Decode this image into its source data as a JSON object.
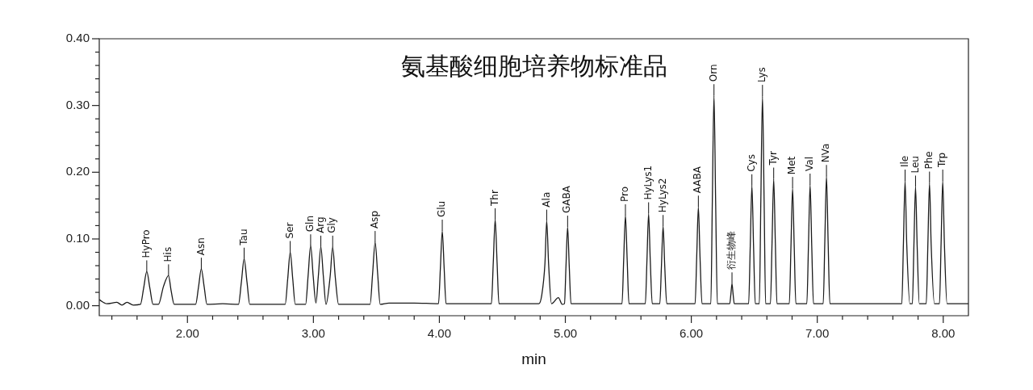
{
  "chart_data": {
    "type": "line",
    "title": "氨基酸细胞培养物标准品",
    "xlabel": "min",
    "marker": "none",
    "line_style": "solid",
    "xlim": [
      1.3,
      8.2
    ],
    "ylim": [
      -0.015,
      0.4
    ],
    "xticks": [
      {
        "value": 1.4,
        "label": null
      },
      {
        "value": 1.6,
        "label": null
      },
      {
        "value": 1.8,
        "label": null
      },
      {
        "value": 2,
        "label": "2.00"
      },
      {
        "value": 2.2,
        "label": null
      },
      {
        "value": 2.4,
        "label": null
      },
      {
        "value": 2.6,
        "label": null
      },
      {
        "value": 2.8,
        "label": null
      },
      {
        "value": 3,
        "label": "3.00"
      },
      {
        "value": 3.2,
        "label": null
      },
      {
        "value": 3.4,
        "label": null
      },
      {
        "value": 3.6,
        "label": null
      },
      {
        "value": 3.8,
        "label": null
      },
      {
        "value": 4,
        "label": "4.00"
      },
      {
        "value": 4.2,
        "label": null
      },
      {
        "value": 4.4,
        "label": null
      },
      {
        "value": 4.6,
        "label": null
      },
      {
        "value": 4.8,
        "label": null
      },
      {
        "value": 5,
        "label": "5.00"
      },
      {
        "value": 5.2,
        "label": null
      },
      {
        "value": 5.4,
        "label": null
      },
      {
        "value": 5.6,
        "label": null
      },
      {
        "value": 5.8,
        "label": null
      },
      {
        "value": 6,
        "label": "6.00"
      },
      {
        "value": 6.2,
        "label": null
      },
      {
        "value": 6.4,
        "label": null
      },
      {
        "value": 6.6,
        "label": null
      },
      {
        "value": 6.8,
        "label": null
      },
      {
        "value": 7,
        "label": "7.00"
      },
      {
        "value": 7.2,
        "label": null
      },
      {
        "value": 7.4,
        "label": null
      },
      {
        "value": 7.6,
        "label": null
      },
      {
        "value": 7.8,
        "label": null
      },
      {
        "value": 8,
        "label": "8.00"
      }
    ],
    "yticks": [
      {
        "value": 0,
        "label": "0.00"
      },
      {
        "value": 0.02,
        "label": null
      },
      {
        "value": 0.04,
        "label": null
      },
      {
        "value": 0.06,
        "label": null
      },
      {
        "value": 0.08,
        "label": null
      },
      {
        "value": 0.1,
        "label": "0.10"
      },
      {
        "value": 0.12,
        "label": null
      },
      {
        "value": 0.14,
        "label": null
      },
      {
        "value": 0.16,
        "label": null
      },
      {
        "value": 0.18,
        "label": null
      },
      {
        "value": 0.2,
        "label": "0.20"
      },
      {
        "value": 0.22,
        "label": null
      },
      {
        "value": 0.24,
        "label": null
      },
      {
        "value": 0.26,
        "label": null
      },
      {
        "value": 0.28,
        "label": null
      },
      {
        "value": 0.3,
        "label": "0.30"
      },
      {
        "value": 0.32,
        "label": null
      },
      {
        "value": 0.34,
        "label": null
      },
      {
        "value": 0.36,
        "label": null
      },
      {
        "value": 0.38,
        "label": null
      },
      {
        "value": 0.4,
        "label": "0.40"
      }
    ],
    "series": [
      {
        "color": "#1a1a1a",
        "x": [
          1.3,
          1.36,
          1.44,
          1.48,
          1.52,
          1.57,
          1.627,
          1.652,
          1.677,
          1.702,
          1.727,
          1.77,
          1.81,
          1.85,
          1.87,
          1.895,
          2.065,
          2.088,
          2.11,
          2.133,
          2.155,
          2.28,
          2.405,
          2.428,
          2.45,
          2.473,
          2.495,
          2.776,
          2.796,
          2.816,
          2.836,
          2.856,
          2.938,
          2.958,
          2.978,
          2.998,
          3.02,
          3.039,
          3.059,
          3.079,
          3.1,
          3.133,
          3.153,
          3.173,
          3.2,
          3.45,
          3.47,
          3.49,
          3.51,
          3.53,
          3.6,
          3.8,
          3.993,
          4.008,
          4.023,
          4.038,
          4.053,
          4.413,
          4.428,
          4.443,
          4.458,
          4.473,
          4.79,
          4.813,
          4.838,
          4.852,
          4.867,
          4.89,
          4.945,
          4.975,
          4.993,
          5.005,
          5.018,
          5.031,
          5.045,
          5.45,
          5.463,
          5.477,
          5.491,
          5.505,
          5.635,
          5.648,
          5.661,
          5.674,
          5.69,
          5.75,
          5.763,
          5.776,
          5.789,
          5.805,
          6.03,
          6.043,
          6.056,
          6.069,
          6.085,
          6.155,
          6.167,
          6.18,
          6.193,
          6.207,
          6.305,
          6.314,
          6.323,
          6.332,
          6.341,
          6.455,
          6.468,
          6.481,
          6.494,
          6.508,
          6.54,
          6.552,
          6.565,
          6.578,
          6.59,
          6.628,
          6.641,
          6.654,
          6.667,
          6.68,
          6.778,
          6.791,
          6.804,
          6.817,
          6.83,
          6.917,
          6.93,
          6.943,
          6.956,
          6.97,
          7.047,
          7.06,
          7.073,
          7.086,
          7.1,
          7.671,
          7.684,
          7.697,
          7.71,
          7.735,
          7.755,
          7.767,
          7.78,
          7.793,
          7.81,
          7.865,
          7.878,
          7.891,
          7.904,
          7.93,
          7.97,
          7.983,
          7.996,
          8.009,
          8.03,
          8.2
        ],
        "values": [
          0.009,
          0.003,
          0.005,
          0.001,
          0.005,
          0.001,
          0.002,
          0.026,
          0.051,
          0.026,
          0.002,
          0.002,
          0.029,
          0.045,
          0.023,
          0.002,
          0.002,
          0.028,
          0.055,
          0.028,
          0.002,
          0.003,
          0.002,
          0.035,
          0.07,
          0.035,
          0.002,
          0.002,
          0.04,
          0.08,
          0.04,
          0.002,
          0.002,
          0.045,
          0.09,
          0.045,
          0.004,
          0.044,
          0.088,
          0.044,
          0.002,
          0.044,
          0.088,
          0.044,
          0.002,
          0.002,
          0.048,
          0.095,
          0.048,
          0.002,
          0.004,
          0.004,
          0.003,
          0.056,
          0.112,
          0.056,
          0.003,
          0.003,
          0.065,
          0.129,
          0.065,
          0.003,
          0.003,
          0.016,
          0.063,
          0.127,
          0.063,
          0.003,
          0.012,
          0.002,
          0.003,
          0.059,
          0.118,
          0.059,
          0.003,
          0.003,
          0.068,
          0.135,
          0.068,
          0.003,
          0.003,
          0.069,
          0.138,
          0.069,
          0.003,
          0.003,
          0.06,
          0.119,
          0.06,
          0.003,
          0.003,
          0.074,
          0.148,
          0.074,
          0.003,
          0.003,
          0.158,
          0.315,
          0.158,
          0.003,
          0.003,
          0.017,
          0.033,
          0.017,
          0.003,
          0.003,
          0.09,
          0.18,
          0.09,
          0.003,
          0.003,
          0.157,
          0.314,
          0.157,
          0.003,
          0.003,
          0.095,
          0.19,
          0.095,
          0.003,
          0.003,
          0.088,
          0.176,
          0.088,
          0.003,
          0.003,
          0.09,
          0.181,
          0.09,
          0.003,
          0.003,
          0.097,
          0.194,
          0.097,
          0.003,
          0.003,
          0.094,
          0.187,
          0.094,
          0.003,
          0.003,
          0.089,
          0.178,
          0.089,
          0.003,
          0.003,
          0.092,
          0.184,
          0.092,
          0.003,
          0.003,
          0.094,
          0.187,
          0.094,
          0.003,
          0.003
        ]
      }
    ],
    "annotations": [
      {
        "text": "HyPro",
        "x": 1.677,
        "y": 0.051
      },
      {
        "text": "His",
        "x": 1.85,
        "y": 0.045
      },
      {
        "text": "Asn",
        "x": 2.11,
        "y": 0.055
      },
      {
        "text": "Tau",
        "x": 2.45,
        "y": 0.07
      },
      {
        "text": "Ser",
        "x": 2.816,
        "y": 0.08
      },
      {
        "text": "Gln",
        "x": 2.978,
        "y": 0.09
      },
      {
        "text": "Arg",
        "x": 3.059,
        "y": 0.088
      },
      {
        "text": "Gly",
        "x": 3.153,
        "y": 0.088
      },
      {
        "text": "Asp",
        "x": 3.49,
        "y": 0.095
      },
      {
        "text": "Glu",
        "x": 4.023,
        "y": 0.112
      },
      {
        "text": "Thr",
        "x": 4.443,
        "y": 0.129
      },
      {
        "text": "Ala",
        "x": 4.852,
        "y": 0.127
      },
      {
        "text": "GABA",
        "x": 5.018,
        "y": 0.118
      },
      {
        "text": "Pro",
        "x": 5.477,
        "y": 0.135
      },
      {
        "text": "HyLys1",
        "x": 5.661,
        "y": 0.138
      },
      {
        "text": "HyLys2",
        "x": 5.776,
        "y": 0.119
      },
      {
        "text": "AABA",
        "x": 6.056,
        "y": 0.148
      },
      {
        "text": "Orn",
        "x": 6.18,
        "y": 0.315
      },
      {
        "text": "衍生物峰",
        "x": 6.323,
        "y": 0.033
      },
      {
        "text": "Cys",
        "x": 6.481,
        "y": 0.18
      },
      {
        "text": "Lys",
        "x": 6.565,
        "y": 0.314
      },
      {
        "text": "Tyr",
        "x": 6.654,
        "y": 0.19
      },
      {
        "text": "Met",
        "x": 6.804,
        "y": 0.176
      },
      {
        "text": "Val",
        "x": 6.943,
        "y": 0.181
      },
      {
        "text": "NVa",
        "x": 7.073,
        "y": 0.194
      },
      {
        "text": "Ile",
        "x": 7.697,
        "y": 0.187
      },
      {
        "text": "Leu",
        "x": 7.78,
        "y": 0.178
      },
      {
        "text": "Phe",
        "x": 7.891,
        "y": 0.184
      },
      {
        "text": "Trp",
        "x": 7.996,
        "y": 0.187
      }
    ]
  }
}
